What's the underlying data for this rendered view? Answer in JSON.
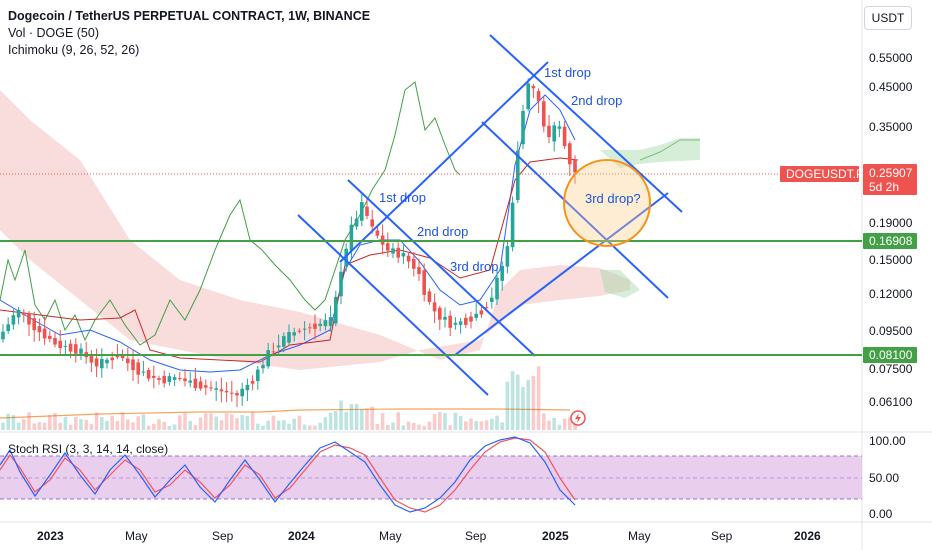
{
  "legend": {
    "title": "Dogecoin / TetherUS PERPETUAL CONTRACT, 1W, BINANCE",
    "volume": "Vol · DOGE (50)",
    "ichimoku": "Ichimoku (9, 26, 52, 26)"
  },
  "currency": "USDT",
  "stoch_label": "Stoch RSI (3, 3, 14, 14, close)",
  "symbol_tag": {
    "name": "DOGEUSDT.P",
    "price": "0.25907",
    "countdown": "5d 2h"
  },
  "colors": {
    "up": "#26a69a",
    "down": "#ef5350",
    "channel": "#2962ff",
    "support": "#43a047",
    "highlight": "#f7931a",
    "stoch_k": "#2962ff",
    "stoch_d": "#f7525f",
    "stoch_band": "#e1bee7",
    "volume_ma": "#f4a460"
  },
  "chart_data": {
    "type": "candlestick",
    "price_axis": {
      "scale": "log",
      "ticks": [
        "0.55000",
        "0.45000",
        "0.35000",
        "0.19000",
        "0.15000",
        "0.12000",
        "0.09500",
        "0.07500",
        "0.06100"
      ]
    },
    "time_axis": {
      "ticks": [
        "2023",
        "May",
        "Sep",
        "2024",
        "May",
        "Sep",
        "2025",
        "May",
        "Sep",
        "2026"
      ]
    },
    "horizontal_levels": [
      {
        "label": "0.16908",
        "value": 0.16908
      },
      {
        "label": "0.08100",
        "value": 0.081
      }
    ],
    "annotations": [
      "1st drop",
      "2nd drop",
      "3rd drop",
      "1st drop",
      "2nd drop",
      "3rd drop?"
    ],
    "stoch_rsi": {
      "ticks": [
        "100.00",
        "50.00",
        "0.00"
      ],
      "band": [
        20,
        80
      ]
    }
  }
}
